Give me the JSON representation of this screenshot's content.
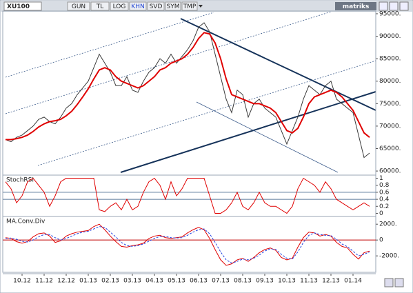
{
  "toolbar": {
    "buttons": [
      "GUN",
      "TL",
      "LOG",
      "KHN",
      "SVD",
      "SYM",
      "TMP"
    ],
    "active": "KHN",
    "logo": "matriks"
  },
  "chart_data": [
    {
      "type": "line",
      "title": "XU100",
      "categories": [
        null,
        null,
        null,
        "10.12",
        null,
        null,
        null,
        "11.12",
        null,
        null,
        null,
        "12.12",
        null,
        null,
        null,
        "01.13",
        null,
        null,
        null,
        "02.13",
        null,
        null,
        null,
        "03.13",
        null,
        null,
        null,
        "04.13",
        null,
        null,
        null,
        "05.13",
        null,
        null,
        null,
        "06.13",
        null,
        null,
        null,
        "07.13",
        null,
        null,
        null,
        "08.13",
        null,
        null,
        null,
        "09.13",
        null,
        null,
        null,
        "10.13",
        null,
        null,
        null,
        "11.13",
        null,
        null,
        null,
        "12.13",
        null,
        null,
        null,
        "01.14",
        null,
        null,
        null
      ],
      "series": [
        {
          "color": "#3a3a3a",
          "values": [
            67000,
            66500,
            67500,
            68000,
            69000,
            70000,
            71500,
            72000,
            71000,
            70500,
            72000,
            74000,
            75000,
            77000,
            78500,
            80000,
            83000,
            86000,
            84000,
            82000,
            79000,
            79000,
            81000,
            78000,
            77500,
            80000,
            82000,
            83000,
            85000,
            84000,
            86000,
            84000,
            85500,
            87000,
            89000,
            92000,
            93000,
            91000,
            86000,
            81000,
            76000,
            73000,
            78000,
            77000,
            72000,
            75000,
            76000,
            74000,
            73000,
            72000,
            69000,
            66000,
            69000,
            72000,
            76000,
            79000,
            78000,
            77000,
            79000,
            80000,
            76000,
            75000,
            74000,
            73000,
            68000,
            63000,
            64000
          ]
        },
        {
          "color": "#e00000",
          "values": [
            67000,
            67000,
            67200,
            67500,
            68000,
            68800,
            69800,
            70500,
            71000,
            71200,
            71500,
            72300,
            73300,
            74800,
            76500,
            78300,
            80500,
            82500,
            83000,
            82500,
            81000,
            80000,
            79500,
            79000,
            78500,
            79000,
            80000,
            81000,
            82500,
            83000,
            84000,
            84500,
            85000,
            86000,
            87500,
            89500,
            90800,
            90500,
            88500,
            85000,
            80500,
            77000,
            76500,
            76000,
            75500,
            75000,
            75000,
            74500,
            74000,
            73000,
            71000,
            69000,
            68500,
            69500,
            72000,
            75000,
            76500,
            77000,
            77500,
            78000,
            77500,
            76500,
            75000,
            73500,
            71000,
            68500,
            67500
          ]
        }
      ],
      "ylim": [
        59400,
        95300
      ],
      "yticks": [
        {
          "value": 60000,
          "label": "60000."
        },
        {
          "value": 65000,
          "label": "65000."
        },
        {
          "value": 70000,
          "label": "70000."
        },
        {
          "value": 75000,
          "label": "75000."
        },
        {
          "value": 80000,
          "label": "80000."
        },
        {
          "value": 85000,
          "label": "85000."
        },
        {
          "value": 90000,
          "label": "90000."
        },
        {
          "value": 95000,
          "label": "95000."
        }
      ]
    },
    {
      "type": "line",
      "title": "StochRSI",
      "series": [
        {
          "color": "#e00000",
          "values": [
            0.9,
            0.7,
            0.3,
            0.5,
            0.9,
            1,
            0.8,
            0.6,
            0.2,
            0.5,
            0.9,
            1,
            1,
            1,
            1,
            1,
            1,
            0.1,
            0.05,
            0.2,
            0.3,
            0.1,
            0.4,
            0.1,
            0.2,
            0.6,
            0.9,
            1,
            0.8,
            0.4,
            0.9,
            0.5,
            0.7,
            1,
            1,
            1,
            1,
            0.5,
            0,
            0,
            0.1,
            0.3,
            0.6,
            0.2,
            0.1,
            0.3,
            0.6,
            0.3,
            0.2,
            0.2,
            0.1,
            0,
            0.2,
            0.7,
            1,
            0.9,
            0.8,
            0.6,
            0.9,
            0.7,
            0.4,
            0.3,
            0.2,
            0.1,
            0.2,
            0.3,
            0.2
          ]
        }
      ],
      "levels": [
        0.6,
        0.4
      ],
      "level_color": "#5a7a9a",
      "ylim": [
        -0.05,
        1.05
      ],
      "yticks": [
        1,
        0.8,
        0.6,
        0.4,
        0.2,
        0
      ]
    },
    {
      "type": "line",
      "title": "MA.Conv.Div",
      "series": [
        {
          "color": "#e00000",
          "values": [
            300,
            200,
            -200,
            -400,
            -200,
            400,
            800,
            900,
            500,
            -300,
            -100,
            500,
            800,
            1000,
            1100,
            1200,
            1700,
            2000,
            1300,
            500,
            -200,
            -800,
            -900,
            -700,
            -600,
            -400,
            200,
            500,
            600,
            300,
            200,
            300,
            400,
            900,
            1300,
            1600,
            1300,
            200,
            -1200,
            -2500,
            -3200,
            -3000,
            -2500,
            -2300,
            -2700,
            -2200,
            -1600,
            -1200,
            -1000,
            -1300,
            -2200,
            -2500,
            -2300,
            -900,
            300,
            1000,
            900,
            500,
            700,
            500,
            -300,
            -800,
            -1000,
            -1800,
            -2400,
            -1600,
            -1400
          ]
        },
        {
          "color": "#2040e0",
          "dashed": true,
          "values": [
            200,
            250,
            100,
            -150,
            -250,
            0,
            400,
            700,
            700,
            300,
            0,
            200,
            500,
            800,
            1000,
            1100,
            1400,
            1700,
            1600,
            1000,
            400,
            -300,
            -700,
            -800,
            -700,
            -500,
            -150,
            200,
            450,
            450,
            300,
            250,
            300,
            600,
            1000,
            1300,
            1400,
            800,
            -300,
            -1500,
            -2500,
            -2900,
            -2700,
            -2400,
            -2500,
            -2300,
            -1900,
            -1400,
            -1100,
            -1200,
            -1800,
            -2300,
            -2400,
            -1500,
            -300,
            600,
            900,
            700,
            600,
            550,
            100,
            -500,
            -850,
            -1400,
            -2000,
            -1800,
            -1500
          ]
        }
      ],
      "levels": [
        0
      ],
      "level_color": "#c00000",
      "ylim": [
        -3900,
        2800
      ],
      "yticks": [
        {
          "value": 2000,
          "label": "2000."
        },
        {
          "value": 0,
          "label": "0"
        },
        {
          "value": -2000,
          "label": "-2000."
        }
      ]
    }
  ]
}
